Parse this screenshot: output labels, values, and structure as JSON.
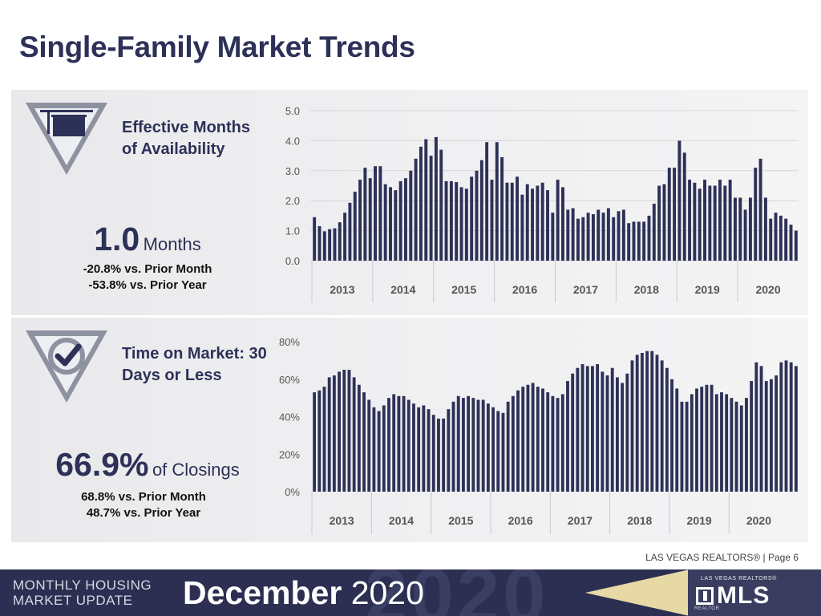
{
  "page": {
    "title": "Single-Family Market Trends",
    "page_note": "LAS VEGAS REALTORS® | Page 6"
  },
  "metrics": {
    "months_availability": {
      "name": "Effective Months of Availability",
      "value": "1.0",
      "unit": "Months",
      "vs_prior_month": "-20.8% vs. Prior Month",
      "vs_prior_year": "-53.8% vs. Prior Year",
      "icon": "for-sale-sign-icon"
    },
    "time_on_market": {
      "name": "Time on Market: 30 Days or Less",
      "value": "66.9%",
      "unit": "of Closings",
      "vs_prior_month": "68.8% vs. Prior Month",
      "vs_prior_year": "48.7% vs. Prior Year",
      "icon": "checkmark-badge-icon"
    }
  },
  "footer": {
    "series_line1": "MONTHLY HOUSING",
    "series_line2": "MARKET UPDATE",
    "date_bold": "December",
    "date_year": "2020",
    "watermark": "2020",
    "logo_top": "LAS VEGAS REALTORS®",
    "logo_main": "MLS",
    "logo_bottom": "REALTOR"
  },
  "colors": {
    "bar": "#2e3157",
    "navy": "#2d3158",
    "badge_gray": "#8e919f",
    "footer_bg": "#2d2f52",
    "gold": "#e7d9a6",
    "grid": "#d6d6da"
  },
  "chart_data": [
    {
      "type": "bar",
      "title": "",
      "xlabel": "",
      "ylabel": "",
      "ylim": [
        0,
        5
      ],
      "ytick_labels": [
        "0.0",
        "1.0",
        "2.0",
        "3.0",
        "4.0",
        "5.0"
      ],
      "year_labels": [
        "2013",
        "2014",
        "2015",
        "2016",
        "2017",
        "2018",
        "2019",
        "2020"
      ],
      "months_per_year": 12,
      "grid": true,
      "values": [
        1.45,
        1.15,
        0.98,
        1.05,
        1.08,
        1.28,
        1.6,
        1.93,
        2.3,
        2.7,
        3.1,
        2.75,
        3.15,
        3.15,
        2.55,
        2.45,
        2.35,
        2.65,
        2.75,
        3.0,
        3.4,
        3.8,
        4.05,
        3.5,
        4.12,
        3.7,
        2.65,
        2.65,
        2.62,
        2.45,
        2.4,
        2.8,
        3.0,
        3.35,
        3.95,
        2.7,
        3.95,
        3.45,
        2.6,
        2.6,
        2.8,
        2.2,
        2.55,
        2.4,
        2.5,
        2.6,
        2.35,
        1.6,
        2.7,
        2.45,
        1.7,
        1.75,
        1.4,
        1.45,
        1.6,
        1.55,
        1.7,
        1.6,
        1.75,
        1.45,
        1.65,
        1.7,
        1.25,
        1.3,
        1.3,
        1.3,
        1.5,
        1.9,
        2.5,
        2.55,
        3.1,
        3.1,
        4.0,
        3.6,
        2.7,
        2.6,
        2.4,
        2.7,
        2.5,
        2.5,
        2.7,
        2.5,
        2.7,
        2.1,
        2.1,
        1.7,
        2.1,
        3.1,
        3.4,
        2.1,
        1.4,
        1.6,
        1.5,
        1.4,
        1.2,
        1.0
      ]
    },
    {
      "type": "bar",
      "title": "",
      "xlabel": "",
      "ylabel": "",
      "ylim": [
        0,
        80
      ],
      "ytick_labels": [
        "0%",
        "20%",
        "40%",
        "60%",
        "80%"
      ],
      "year_labels": [
        "2013",
        "2014",
        "2015",
        "2016",
        "2017",
        "2018",
        "2019",
        "2020"
      ],
      "months_per_year": 12,
      "grid": false,
      "values": [
        53,
        54,
        56,
        61,
        62,
        64,
        65,
        65,
        61,
        57,
        53,
        49,
        45,
        43,
        46,
        50,
        52,
        51,
        51,
        49,
        47,
        45,
        46,
        44,
        41,
        39,
        39,
        44,
        48,
        51,
        50,
        51,
        50,
        49,
        49,
        47,
        45,
        43,
        42,
        48,
        51,
        54,
        56,
        57,
        58,
        56,
        55,
        53,
        51,
        50,
        52,
        59,
        63,
        66,
        68,
        67,
        67,
        68,
        64,
        62,
        66,
        61,
        58,
        63,
        70,
        73,
        74,
        75,
        75,
        73,
        70,
        66,
        60,
        55,
        48,
        48,
        52,
        55,
        56,
        57,
        57,
        52,
        53,
        52,
        50,
        48,
        46,
        50,
        59,
        69,
        67,
        59,
        60,
        62,
        69,
        70
      ],
      "trailing_values": [
        69,
        67
      ]
    }
  ]
}
